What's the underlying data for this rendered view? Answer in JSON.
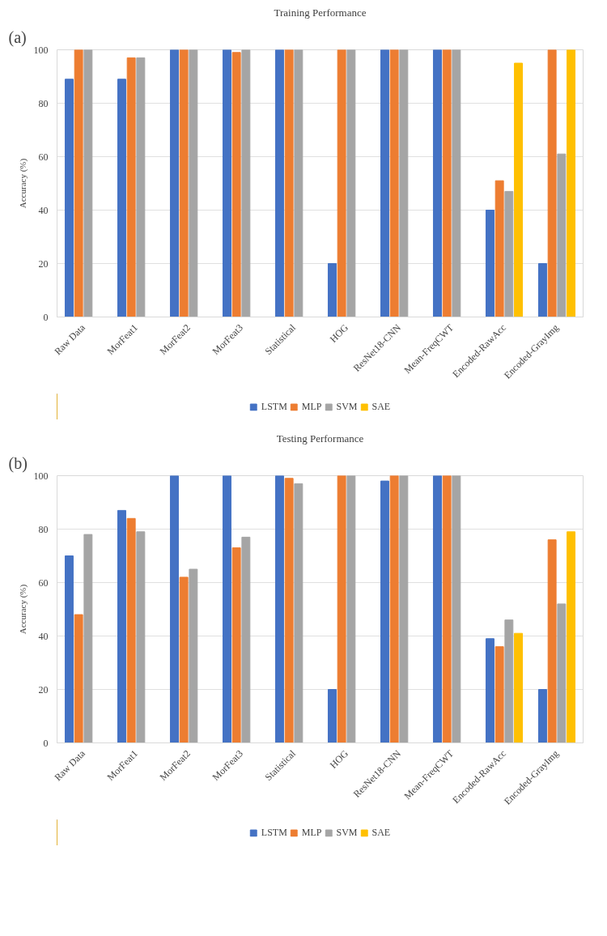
{
  "chart_data": [
    {
      "type": "bar",
      "title": "Training Performance",
      "ylabel": "Accuracy (%)",
      "annotations": [
        "(a)"
      ],
      "categories": [
        "Raw Data",
        "MorFeat1",
        "MorFeat2",
        "MorFeat3",
        "Statistical",
        "HOG",
        "ResNet18-CNN",
        "Mean-FreqCWT",
        "Encoded-RawAcc",
        "Encoded-GrayImg"
      ],
      "series": [
        {
          "name": "LSTM",
          "color": "#4472c4",
          "values": [
            89,
            89,
            100,
            100,
            100,
            20,
            100,
            100,
            40,
            20
          ]
        },
        {
          "name": "MLP",
          "color": "#ed7d31",
          "values": [
            100,
            97,
            100,
            99,
            100,
            100,
            100,
            100,
            51,
            100
          ]
        },
        {
          "name": "SVM",
          "color": "#a5a5a5",
          "values": [
            100,
            97,
            100,
            100,
            100,
            100,
            100,
            100,
            47,
            61
          ]
        },
        {
          "name": "SAE",
          "color": "#ffc000",
          "values": [
            null,
            null,
            null,
            null,
            null,
            null,
            null,
            null,
            95,
            100
          ]
        }
      ],
      "ylim": [
        0,
        100
      ],
      "yticks": [
        0,
        20,
        40,
        60,
        80,
        100
      ],
      "grid": "y",
      "legend": "bottom"
    },
    {
      "type": "bar",
      "title": "Testing Performance",
      "ylabel": "Accuracy (%)",
      "annotations": [
        "(b)"
      ],
      "categories": [
        "Raw Data",
        "MorFeat1",
        "MorFeat2",
        "MorFeat3",
        "Statistical",
        "HOG",
        "ResNet18-CNN",
        "Mean-FreqCWT",
        "Encoded-RawAcc",
        "Encoded-GrayImg"
      ],
      "series": [
        {
          "name": "LSTM",
          "color": "#4472c4",
          "values": [
            70,
            87,
            100,
            100,
            100,
            20,
            98,
            100,
            39,
            20
          ]
        },
        {
          "name": "MLP",
          "color": "#ed7d31",
          "values": [
            48,
            84,
            62,
            73,
            99,
            100,
            100,
            100,
            36,
            76
          ]
        },
        {
          "name": "SVM",
          "color": "#a5a5a5",
          "values": [
            78,
            79,
            65,
            77,
            97,
            100,
            100,
            100,
            46,
            52
          ]
        },
        {
          "name": "SAE",
          "color": "#ffc000",
          "values": [
            null,
            null,
            null,
            null,
            null,
            null,
            null,
            null,
            41,
            79
          ]
        }
      ],
      "ylim": [
        0,
        100
      ],
      "yticks": [
        0,
        20,
        40,
        60,
        80,
        100
      ],
      "grid": "y",
      "legend": "bottom"
    }
  ]
}
